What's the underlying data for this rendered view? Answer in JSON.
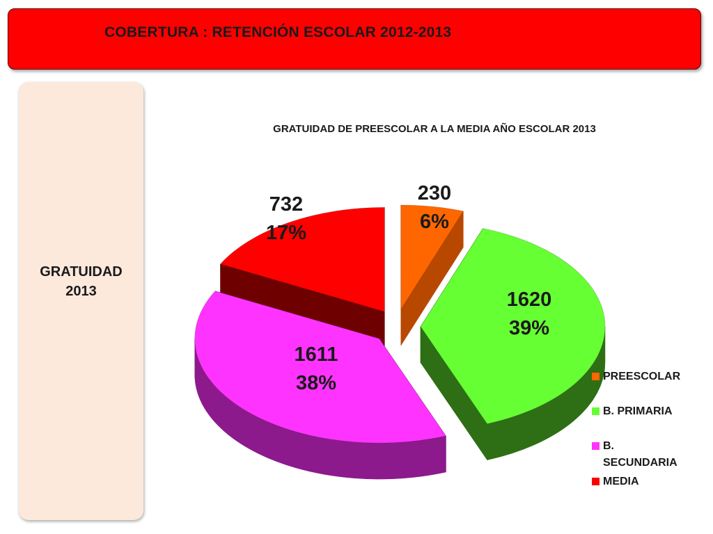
{
  "header": {
    "title": "COBERTURA :  RETENCIÓN ESCOLAR 2012-2013"
  },
  "side_panel": {
    "line1": "GRATUIDAD",
    "line2": "2013"
  },
  "chart_data": {
    "type": "pie",
    "title": "GRATUIDAD DE PREESCOLAR A LA MEDIA AÑO ESCOLAR 2013",
    "style": "3d-exploded",
    "legend_position": "right",
    "slices": [
      {
        "label": "PREESCOLAR",
        "value": 230,
        "percent": "6%",
        "color": "#ff6600",
        "side_color": "#b84800"
      },
      {
        "label": "B. PRIMARIA",
        "value": 1620,
        "percent": "39%",
        "color": "#66ff33",
        "side_color": "#2e6e14"
      },
      {
        "label": "B. SECUNDARIA",
        "value": 1611,
        "percent": "38%",
        "color": "#ff33ff",
        "side_color": "#8c1a8c"
      },
      {
        "label": "MEDIA",
        "value": 732,
        "percent": "17%",
        "color": "#ff0000",
        "side_color": "#6e0000"
      }
    ]
  }
}
